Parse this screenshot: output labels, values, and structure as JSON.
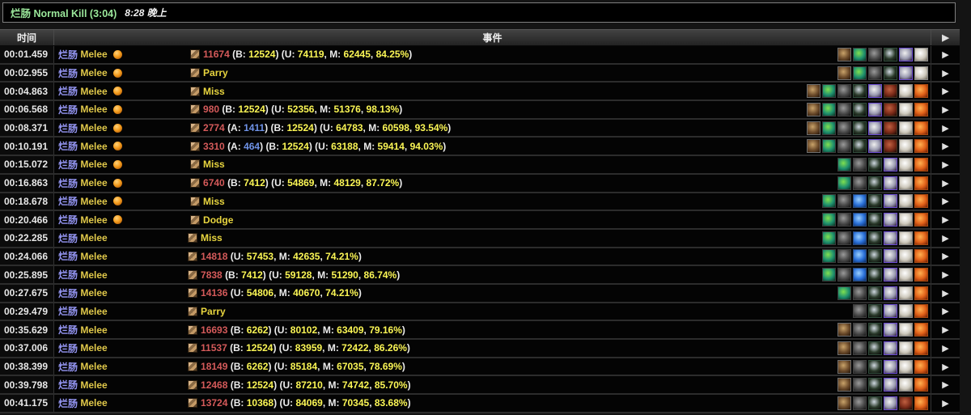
{
  "title_bar": {
    "encounter_title": "烂肠 Normal Kill (3:04)",
    "time_of_day": "8:28 晚上"
  },
  "table": {
    "headers": {
      "time": "时间",
      "event": "事件"
    },
    "arrow_glyph": "▶",
    "npc_name": "烂肠",
    "ability_name": "Melee",
    "stat_labels": {
      "absorbed": "A",
      "blocked": "B",
      "unmitigated": "U",
      "mitigated": "M"
    }
  },
  "colors": {
    "encounter_green": "#9be89b",
    "npc_blue": "#9495f2",
    "ability_yellow": "#e0c84a",
    "damage_red": "#d45a5a",
    "stat_yellow": "#fbf655",
    "absorb_blue": "#6f93e8",
    "row_separator": "#2c2c2c"
  },
  "icon_types": {
    "bite": {
      "label": "bite-debuff-icon",
      "c1": "#c9a36a",
      "c2": "#6b4a2a",
      "c3": "#241508",
      "border": "#6e6e6e"
    },
    "nature": {
      "label": "nature-buff-icon",
      "c1": "#7fe050",
      "c2": "#1e8f6e",
      "c3": "#0a3020",
      "border": "#3a3a3a"
    },
    "stone": {
      "label": "stone-buff-icon",
      "c1": "#9a9a9a",
      "c2": "#4a4a4a",
      "c3": "#141414",
      "border": "#3f3f3f"
    },
    "dagger": {
      "label": "dagger-buff-icon",
      "c1": "#cfd8e0",
      "c2": "#2a3a2a",
      "c3": "#050505",
      "border": "#2f4a3a"
    },
    "ghost": {
      "label": "ghost-buff-icon",
      "c1": "#f0f0f0",
      "c2": "#9a9ab0",
      "c3": "#2a1a3a",
      "border": "#6a4bd0"
    },
    "claw": {
      "label": "claw-debuff-icon",
      "c1": "#c06040",
      "c2": "#7a2a18",
      "c3": "#1a0a05",
      "border": "#443322"
    },
    "orb": {
      "label": "pale-orb-buff-icon",
      "c1": "#ffffff",
      "c2": "#cfcabe",
      "c3": "#6a6458",
      "border": "#8a8a8a"
    },
    "flame": {
      "label": "flame-buff-icon",
      "c1": "#ffb050",
      "c2": "#e06018",
      "c3": "#701e05",
      "border": "#a84a10"
    },
    "frost": {
      "label": "frost-buff-icon",
      "c1": "#9ad0ff",
      "c2": "#2a70d8",
      "c3": "#0a2a60",
      "border": "#2a4a7a"
    }
  },
  "rows": [
    {
      "time": "00:01.459",
      "marker": true,
      "amount": "11674",
      "blocked": "12524",
      "unmit": "74119",
      "mit": "62445",
      "percent": "84.25%",
      "icons": [
        "bite",
        "nature",
        "stone",
        "dagger",
        "ghost",
        "orb"
      ]
    },
    {
      "time": "00:02.955",
      "marker": true,
      "result": "Parry",
      "icons": [
        "bite",
        "nature",
        "stone",
        "dagger",
        "ghost",
        "orb"
      ]
    },
    {
      "time": "00:04.863",
      "marker": true,
      "result": "Miss",
      "icons": [
        "bite",
        "nature",
        "stone",
        "dagger",
        "ghost",
        "claw",
        "orb",
        "flame"
      ]
    },
    {
      "time": "00:06.568",
      "marker": true,
      "amount": "980",
      "blocked": "12524",
      "unmit": "52356",
      "mit": "51376",
      "percent": "98.13%",
      "icons": [
        "bite",
        "nature",
        "stone",
        "dagger",
        "ghost",
        "claw",
        "orb",
        "flame"
      ]
    },
    {
      "time": "00:08.371",
      "marker": true,
      "amount": "2774",
      "absorbed": "1411",
      "blocked": "12524",
      "unmit": "64783",
      "mit": "60598",
      "percent": "93.54%",
      "icons": [
        "bite",
        "nature",
        "stone",
        "dagger",
        "ghost",
        "claw",
        "orb",
        "flame"
      ]
    },
    {
      "time": "00:10.191",
      "marker": true,
      "amount": "3310",
      "absorbed": "464",
      "blocked": "12524",
      "unmit": "63188",
      "mit": "59414",
      "percent": "94.03%",
      "icons": [
        "bite",
        "nature",
        "stone",
        "dagger",
        "ghost",
        "claw",
        "orb",
        "flame"
      ]
    },
    {
      "time": "00:15.072",
      "marker": true,
      "result": "Miss",
      "icons": [
        "nature",
        "stone",
        "dagger",
        "ghost",
        "orb",
        "flame"
      ]
    },
    {
      "time": "00:16.863",
      "marker": true,
      "amount": "6740",
      "blocked": "7412",
      "unmit": "54869",
      "mit": "48129",
      "percent": "87.72%",
      "icons": [
        "nature",
        "stone",
        "dagger",
        "ghost",
        "orb",
        "flame"
      ]
    },
    {
      "time": "00:18.678",
      "marker": true,
      "result": "Miss",
      "icons": [
        "nature",
        "stone",
        "frost",
        "dagger",
        "ghost",
        "orb",
        "flame"
      ]
    },
    {
      "time": "00:20.466",
      "marker": true,
      "result": "Dodge",
      "icons": [
        "nature",
        "stone",
        "frost",
        "dagger",
        "ghost",
        "orb",
        "flame"
      ]
    },
    {
      "time": "00:22.285",
      "marker": false,
      "result": "Miss",
      "icons": [
        "nature",
        "stone",
        "frost",
        "dagger",
        "ghost",
        "orb",
        "flame"
      ]
    },
    {
      "time": "00:24.066",
      "marker": false,
      "amount": "14818",
      "unmit": "57453",
      "mit": "42635",
      "percent": "74.21%",
      "icons": [
        "nature",
        "stone",
        "frost",
        "dagger",
        "ghost",
        "orb",
        "flame"
      ]
    },
    {
      "time": "00:25.895",
      "marker": false,
      "amount": "7838",
      "blocked": "7412",
      "unmit": "59128",
      "mit": "51290",
      "percent": "86.74%",
      "icons": [
        "nature",
        "stone",
        "frost",
        "dagger",
        "ghost",
        "orb",
        "flame"
      ]
    },
    {
      "time": "00:27.675",
      "marker": false,
      "amount": "14136",
      "unmit": "54806",
      "mit": "40670",
      "percent": "74.21%",
      "icons": [
        "nature",
        "stone",
        "dagger",
        "ghost",
        "orb",
        "flame"
      ]
    },
    {
      "time": "00:29.479",
      "marker": false,
      "result": "Parry",
      "icons": [
        "stone",
        "dagger",
        "ghost",
        "orb",
        "flame"
      ]
    },
    {
      "time": "00:35.629",
      "marker": false,
      "amount": "16693",
      "blocked": "6262",
      "unmit": "80102",
      "mit": "63409",
      "percent": "79.16%",
      "icons": [
        "bite",
        "stone",
        "dagger",
        "ghost",
        "orb",
        "flame"
      ]
    },
    {
      "time": "00:37.006",
      "marker": false,
      "amount": "11537",
      "blocked": "12524",
      "unmit": "83959",
      "mit": "72422",
      "percent": "86.26%",
      "icons": [
        "bite",
        "stone",
        "dagger",
        "ghost",
        "orb",
        "flame"
      ]
    },
    {
      "time": "00:38.399",
      "marker": false,
      "amount": "18149",
      "blocked": "6262",
      "unmit": "85184",
      "mit": "67035",
      "percent": "78.69%",
      "icons": [
        "bite",
        "stone",
        "dagger",
        "ghost",
        "orb",
        "flame"
      ]
    },
    {
      "time": "00:39.798",
      "marker": false,
      "amount": "12468",
      "blocked": "12524",
      "unmit": "87210",
      "mit": "74742",
      "percent": "85.70%",
      "icons": [
        "bite",
        "stone",
        "dagger",
        "ghost",
        "orb",
        "flame"
      ]
    },
    {
      "time": "00:41.175",
      "marker": false,
      "amount": "13724",
      "blocked": "10368",
      "unmit": "84069",
      "mit": "70345",
      "percent": "83.68%",
      "icons": [
        "bite",
        "stone",
        "dagger",
        "ghost",
        "claw",
        "flame"
      ]
    }
  ]
}
